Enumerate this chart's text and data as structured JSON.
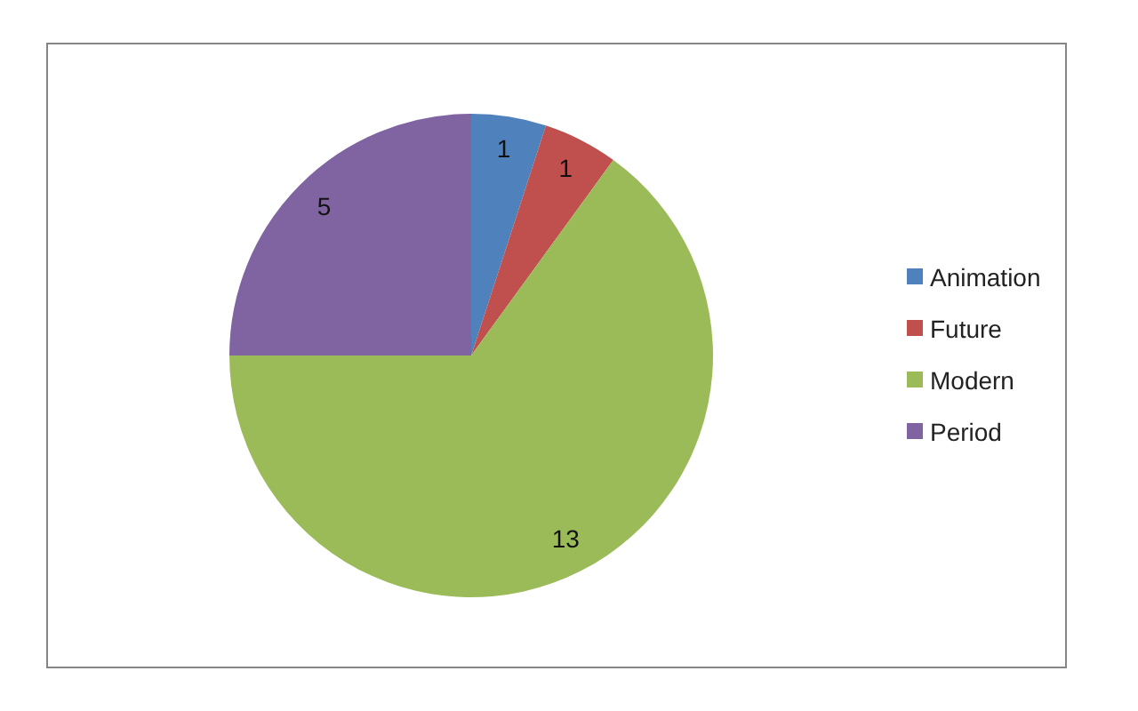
{
  "chart_data": {
    "type": "pie",
    "categories": [
      "Animation",
      "Future",
      "Modern",
      "Period"
    ],
    "values": [
      1,
      1,
      13,
      5
    ],
    "colors": [
      "#4f81bd",
      "#c0504d",
      "#9bbb59",
      "#8064a2"
    ],
    "data_labels": true,
    "legend": "right"
  }
}
